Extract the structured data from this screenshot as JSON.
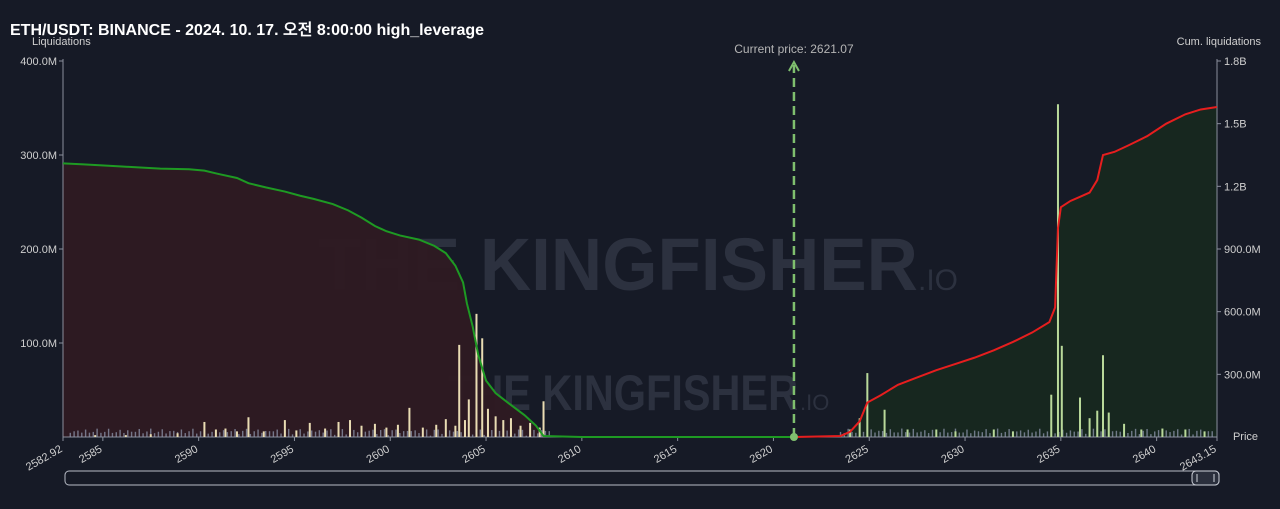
{
  "title": "ETH/USDT: BINANCE - 2024. 10. 17. 오전 8:00:00 high_leverage",
  "watermark": {
    "brand": "THE KINGFISHER",
    "suffix": ".IO"
  },
  "colors": {
    "background": "#161a26",
    "short_bars": "#e9dcb3",
    "long_bars": "#b9d99a",
    "small_bars": "#8f97ad",
    "cum_left_line": "#1e9a23",
    "cum_right_line": "#e61e1e",
    "left_fill": "#2e1a22",
    "right_fill": "#17281f",
    "current_price_line": "#7fbf6e"
  },
  "chart_data": {
    "type": "bar",
    "xlabel": "Price",
    "ylabel": "Liquidations",
    "y2label": "Cum. liquidations",
    "xlim": [
      2582.92,
      2643.15
    ],
    "ylim": [
      0,
      400
    ],
    "y2lim": [
      0,
      1800
    ],
    "x_ticks": [
      "2582.92",
      "2585",
      "2590",
      "2595",
      "2600",
      "2605",
      "2610",
      "2615",
      "2620",
      "2625",
      "2630",
      "2635",
      "2640",
      "2643.15"
    ],
    "y_ticks": [
      "100.0M",
      "200.0M",
      "300.0M",
      "400.0M"
    ],
    "y2_ticks": [
      "300.0M",
      "600.0M",
      "900.0M",
      "1.2B",
      "1.5B",
      "1.8B"
    ],
    "current_price": 2621.07,
    "current_price_label": "Current price: 2621.07",
    "series": [
      {
        "name": "Liquidations",
        "unit": "M",
        "points": [
          [
            2584.6,
            2
          ],
          [
            2586.2,
            2
          ],
          [
            2587.5,
            3
          ],
          [
            2588.9,
            4
          ],
          [
            2590.3,
            16
          ],
          [
            2590.9,
            8
          ],
          [
            2591.4,
            9
          ],
          [
            2592.0,
            6
          ],
          [
            2592.6,
            21
          ],
          [
            2593.4,
            6
          ],
          [
            2594.5,
            18
          ],
          [
            2595.1,
            7
          ],
          [
            2595.8,
            15
          ],
          [
            2596.6,
            9
          ],
          [
            2597.3,
            16
          ],
          [
            2597.9,
            18
          ],
          [
            2598.5,
            12
          ],
          [
            2599.2,
            14
          ],
          [
            2599.8,
            10
          ],
          [
            2600.4,
            13
          ],
          [
            2601.0,
            31
          ],
          [
            2601.7,
            10
          ],
          [
            2602.4,
            13
          ],
          [
            2602.9,
            19
          ],
          [
            2603.4,
            12
          ],
          [
            2603.6,
            98
          ],
          [
            2603.9,
            18
          ],
          [
            2604.1,
            40
          ],
          [
            2604.5,
            131
          ],
          [
            2604.8,
            105
          ],
          [
            2605.1,
            30
          ],
          [
            2605.5,
            22
          ],
          [
            2605.9,
            18
          ],
          [
            2606.3,
            20
          ],
          [
            2606.8,
            12
          ],
          [
            2607.3,
            15
          ],
          [
            2607.8,
            10
          ],
          [
            2608.0,
            38
          ],
          [
            2624.0,
            8
          ],
          [
            2624.5,
            20
          ],
          [
            2624.9,
            68
          ],
          [
            2625.8,
            29
          ],
          [
            2627.0,
            8
          ],
          [
            2628.5,
            8
          ],
          [
            2629.5,
            6
          ],
          [
            2631.5,
            8
          ],
          [
            2632.5,
            6
          ],
          [
            2634.5,
            45
          ],
          [
            2634.85,
            354
          ],
          [
            2635.05,
            97
          ],
          [
            2636.0,
            42
          ],
          [
            2636.5,
            20
          ],
          [
            2636.9,
            28
          ],
          [
            2637.2,
            87
          ],
          [
            2637.5,
            26
          ],
          [
            2638.3,
            14
          ],
          [
            2639.2,
            8
          ],
          [
            2640.3,
            9
          ],
          [
            2641.5,
            8
          ],
          [
            2642.5,
            6
          ]
        ]
      },
      {
        "name": "Cum. liquidations",
        "unit": "M",
        "points": [
          [
            2582.92,
            1310
          ],
          [
            2584.0,
            1305
          ],
          [
            2586.0,
            1295
          ],
          [
            2588.0,
            1285
          ],
          [
            2589.5,
            1282
          ],
          [
            2590.3,
            1275
          ],
          [
            2591.0,
            1260
          ],
          [
            2592.0,
            1240
          ],
          [
            2592.6,
            1215
          ],
          [
            2593.5,
            1195
          ],
          [
            2594.5,
            1175
          ],
          [
            2595.3,
            1155
          ],
          [
            2596.0,
            1140
          ],
          [
            2597.0,
            1115
          ],
          [
            2597.8,
            1085
          ],
          [
            2598.5,
            1050
          ],
          [
            2599.2,
            1010
          ],
          [
            2599.8,
            985
          ],
          [
            2600.5,
            965
          ],
          [
            2601.5,
            945
          ],
          [
            2602.3,
            915
          ],
          [
            2602.9,
            880
          ],
          [
            2603.4,
            820
          ],
          [
            2603.8,
            740
          ],
          [
            2604.0,
            640
          ],
          [
            2604.3,
            530
          ],
          [
            2604.6,
            390
          ],
          [
            2605.0,
            270
          ],
          [
            2605.5,
            210
          ],
          [
            2606.2,
            160
          ],
          [
            2607.0,
            105
          ],
          [
            2607.6,
            55
          ],
          [
            2608.0,
            5
          ],
          [
            2610.0,
            0
          ],
          [
            2621.07,
            0
          ]
        ]
      },
      {
        "name": "Cum. liquidations",
        "unit": "M",
        "points": [
          [
            2621.07,
            0
          ],
          [
            2623.5,
            5
          ],
          [
            2624.0,
            25
          ],
          [
            2624.5,
            75
          ],
          [
            2624.9,
            165
          ],
          [
            2625.6,
            200
          ],
          [
            2626.5,
            250
          ],
          [
            2627.5,
            285
          ],
          [
            2628.5,
            320
          ],
          [
            2629.5,
            350
          ],
          [
            2630.5,
            380
          ],
          [
            2631.5,
            415
          ],
          [
            2632.5,
            455
          ],
          [
            2633.5,
            500
          ],
          [
            2634.4,
            550
          ],
          [
            2634.7,
            620
          ],
          [
            2634.85,
            1000
          ],
          [
            2635.0,
            1100
          ],
          [
            2635.5,
            1130
          ],
          [
            2636.0,
            1150
          ],
          [
            2636.5,
            1170
          ],
          [
            2636.9,
            1230
          ],
          [
            2637.2,
            1350
          ],
          [
            2637.8,
            1365
          ],
          [
            2638.5,
            1395
          ],
          [
            2639.5,
            1440
          ],
          [
            2640.5,
            1500
          ],
          [
            2641.5,
            1545
          ],
          [
            2642.3,
            1568
          ],
          [
            2643.15,
            1580
          ]
        ]
      }
    ],
    "scrollbar": true
  }
}
